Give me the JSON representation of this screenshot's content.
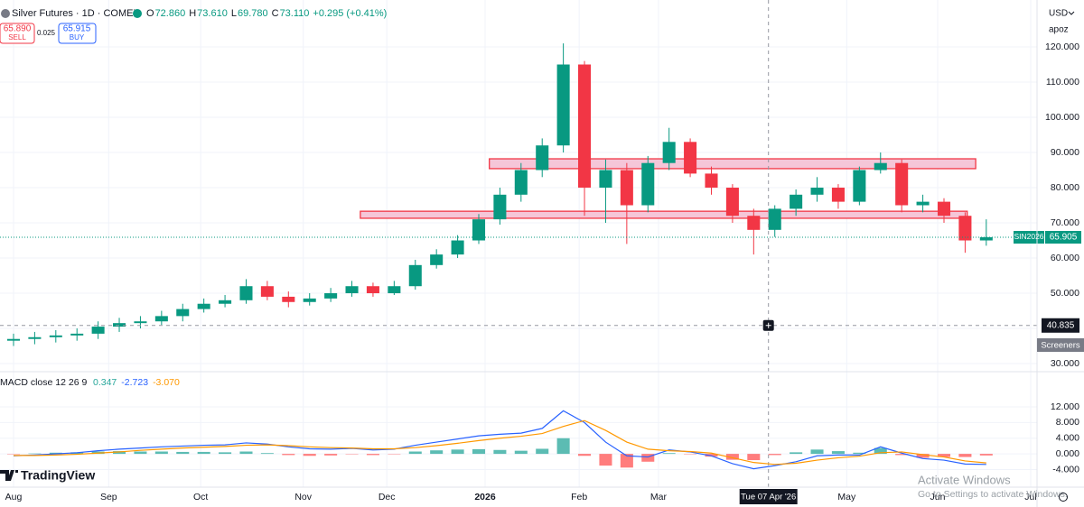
{
  "header": {
    "symbol": "Silver Futures · 1D · COMEX",
    "ohlc": [
      {
        "label": "O",
        "value": "72.860"
      },
      {
        "label": "H",
        "value": "73.610"
      },
      {
        "label": "L",
        "value": "69.780"
      },
      {
        "label": "C",
        "value": "73.110"
      }
    ],
    "change": "+0.295 (+0.41%)",
    "sell_price": "65.890",
    "sell_label": "SELL",
    "spread": "0.025",
    "buy_price": "65.915",
    "buy_label": "BUY",
    "currency": "USD",
    "scale_menu": "apoz",
    "screeners": "Screeners",
    "logo": "TradingView",
    "watermark_title": "Activate Windows",
    "watermark_text": "Go to Settings to activate Windows."
  },
  "chart_data": [
    {
      "type": "candlestick",
      "xlim": [
        -0.64,
        48.4
      ],
      "ylim": [
        27.7,
        132.05
      ],
      "up_color": "#089981",
      "down_color": "#f23645",
      "xticks": [
        {
          "value": 0,
          "label": "Aug"
        },
        {
          "value": 4.5,
          "label": "Sep"
        },
        {
          "value": 8.85,
          "label": "Oct"
        },
        {
          "value": 13.7,
          "label": "Nov"
        },
        {
          "value": 17.65,
          "label": "Dec"
        },
        {
          "value": 22.3,
          "label": "2026"
        },
        {
          "value": 26.75,
          "label": "Feb"
        },
        {
          "value": 30.5,
          "label": "Mar"
        },
        {
          "value": 39.4,
          "label": "May"
        },
        {
          "value": 43.7,
          "label": "Jun"
        },
        {
          "value": 48.1,
          "label": "Jul"
        }
      ],
      "yticks": [
        {
          "value": 30,
          "label": "30.000"
        },
        {
          "value": 40,
          "label": "40.000"
        },
        {
          "value": 50,
          "label": "50.000"
        },
        {
          "value": 60,
          "label": "60.000"
        },
        {
          "value": 70,
          "label": "70.000"
        },
        {
          "value": 80,
          "label": "80.000"
        },
        {
          "value": 90,
          "label": "90.000"
        },
        {
          "value": 100,
          "label": "100.000"
        },
        {
          "value": 110,
          "label": "110.000"
        },
        {
          "value": 120,
          "label": "120.000"
        }
      ],
      "x": [
        0,
        1,
        2,
        3,
        4,
        5,
        6,
        7,
        8,
        9,
        10,
        11,
        12,
        13,
        14,
        15,
        16,
        17,
        18,
        19,
        20,
        21,
        22,
        23,
        24,
        25,
        26,
        27,
        28,
        29,
        30,
        31,
        32,
        33,
        34,
        35,
        36,
        37,
        38,
        39,
        40,
        41,
        42,
        43,
        44,
        45,
        46
      ],
      "open": [
        36.5,
        37,
        37.5,
        38,
        38.5,
        40.5,
        41.5,
        42,
        43.5,
        45.5,
        47,
        48,
        52,
        49,
        47.5,
        48.5,
        50,
        52,
        50,
        52,
        58,
        61,
        65,
        71,
        78,
        85,
        92,
        115,
        80,
        85,
        75,
        87,
        93,
        84,
        80,
        72,
        68,
        74,
        78,
        80,
        76,
        85,
        87,
        75,
        76,
        72,
        65
      ],
      "high": [
        38.5,
        39,
        39.5,
        40,
        42,
        43,
        43.5,
        45,
        47,
        48.5,
        49.5,
        54,
        53.5,
        50.5,
        50,
        51.5,
        53.5,
        53,
        53.5,
        59.5,
        62.5,
        66.5,
        72.5,
        80,
        87,
        94,
        121,
        116,
        88,
        87,
        89,
        97,
        94,
        86,
        81,
        74,
        75,
        79.5,
        83,
        81,
        86,
        90,
        88,
        78,
        77,
        73,
        71
      ],
      "low": [
        35,
        35.5,
        36,
        36.5,
        37,
        39,
        40,
        41,
        42,
        44.5,
        46,
        47,
        48,
        46,
        46.5,
        47.5,
        49,
        49,
        49.5,
        51,
        57,
        60,
        64,
        69.5,
        76,
        83,
        90,
        72,
        70,
        64,
        73,
        85,
        83,
        78,
        70,
        61,
        66,
        72,
        76,
        74,
        75,
        84,
        73,
        73,
        70,
        61.5,
        63.5
      ],
      "close": [
        37,
        37.5,
        38,
        38.5,
        40.5,
        41.5,
        42,
        43.5,
        45.5,
        47,
        48,
        52,
        49,
        47.5,
        48.5,
        50,
        52,
        50,
        52,
        58,
        61,
        65,
        71,
        78,
        85,
        92,
        115,
        80,
        85,
        75,
        87,
        93,
        84,
        80,
        72,
        68,
        74,
        78,
        80,
        76,
        85,
        87,
        75,
        76,
        72,
        65,
        65.905
      ],
      "zones": [
        {
          "x0": 22.5,
          "x1": 45.5,
          "y0": 85.4,
          "y1": 88.2,
          "color": "#f5c6d8"
        },
        {
          "x0": 16.4,
          "x1": 45.1,
          "y0": 71.3,
          "y1": 73.3,
          "color": "#f5c6d8"
        }
      ],
      "last_price": {
        "name": "SIN2026",
        "value": 65.905,
        "color": "#089981"
      },
      "crosshair": {
        "x": 35.7,
        "x_label": "Tue 07 Apr '26",
        "y": 40.835
      }
    },
    {
      "type": "macd",
      "title": "MACD close 12 26 9",
      "readout": [
        "0.347",
        "-2.723",
        "-3.070"
      ],
      "xlim": [
        -0.64,
        48.4
      ],
      "ylim": [
        -8.5,
        20.3
      ],
      "yticks": [
        {
          "value": -4,
          "label": "-4.000"
        },
        {
          "value": 0,
          "label": "0.000"
        },
        {
          "value": 4,
          "label": "4.000"
        },
        {
          "value": 8,
          "label": "8.000"
        },
        {
          "value": 12,
          "label": "12.000"
        }
      ],
      "x": [
        0,
        1,
        2,
        3,
        4,
        5,
        6,
        7,
        8,
        9,
        10,
        11,
        12,
        13,
        14,
        15,
        16,
        17,
        18,
        19,
        20,
        21,
        22,
        23,
        24,
        25,
        26,
        27,
        28,
        29,
        30,
        31,
        32,
        33,
        34,
        35,
        36,
        37,
        38,
        39,
        40,
        41,
        42,
        43,
        44,
        45,
        46
      ],
      "histogram": {
        "positive_color": "#26a69a",
        "negative_color": "#ff5252",
        "values": [
          -0.1,
          0.1,
          0.3,
          0.4,
          0.6,
          0.7,
          0.6,
          0.6,
          0.5,
          0.5,
          0.4,
          0.6,
          0.2,
          -0.3,
          -0.5,
          -0.4,
          -0.1,
          -0.3,
          -0.1,
          0.6,
          0.9,
          1.1,
          1.2,
          1,
          0.8,
          1.3,
          4,
          -0.5,
          -3,
          -3.5,
          -2,
          0.2,
          -0.1,
          -0.7,
          -1.5,
          -1.6,
          -0.3,
          0.4,
          1.1,
          0.7,
          0.3,
          1.5,
          -0.3,
          -1,
          -0.8,
          -0.8,
          -0.4
        ]
      },
      "series": [
        {
          "color": "#2962ff",
          "values": [
            -0.5,
            -0.3,
            0,
            0.3,
            0.8,
            1.2,
            1.5,
            1.8,
            2,
            2.2,
            2.3,
            2.8,
            2.5,
            1.8,
            1.3,
            1.2,
            1.4,
            1.0,
            1.2,
            2.2,
            3,
            3.8,
            4.6,
            5,
            5.3,
            6.5,
            11,
            8,
            3,
            -0.5,
            -0.8,
            1,
            0.5,
            -0.5,
            -2.5,
            -3.8,
            -3,
            -2,
            -0.5,
            -0.3,
            -0.3,
            1.8,
            0.2,
            -1.2,
            -1.6,
            -2.6,
            -2.7
          ]
        },
        {
          "color": "#ff9800",
          "values": [
            -0.4,
            -0.4,
            -0.3,
            -0.1,
            0.2,
            0.5,
            0.9,
            1.2,
            1.5,
            1.7,
            1.9,
            2.2,
            2.3,
            2.1,
            1.8,
            1.6,
            1.5,
            1.3,
            1.3,
            1.6,
            2.1,
            2.7,
            3.4,
            4,
            4.5,
            5.2,
            7,
            8.5,
            6,
            3,
            1.2,
            0.8,
            0.6,
            0.2,
            -1,
            -2.2,
            -2.7,
            -2.4,
            -1.6,
            -1,
            -0.6,
            0.3,
            0.5,
            -0.2,
            -0.8,
            -1.8,
            -2.3
          ]
        }
      ]
    }
  ]
}
